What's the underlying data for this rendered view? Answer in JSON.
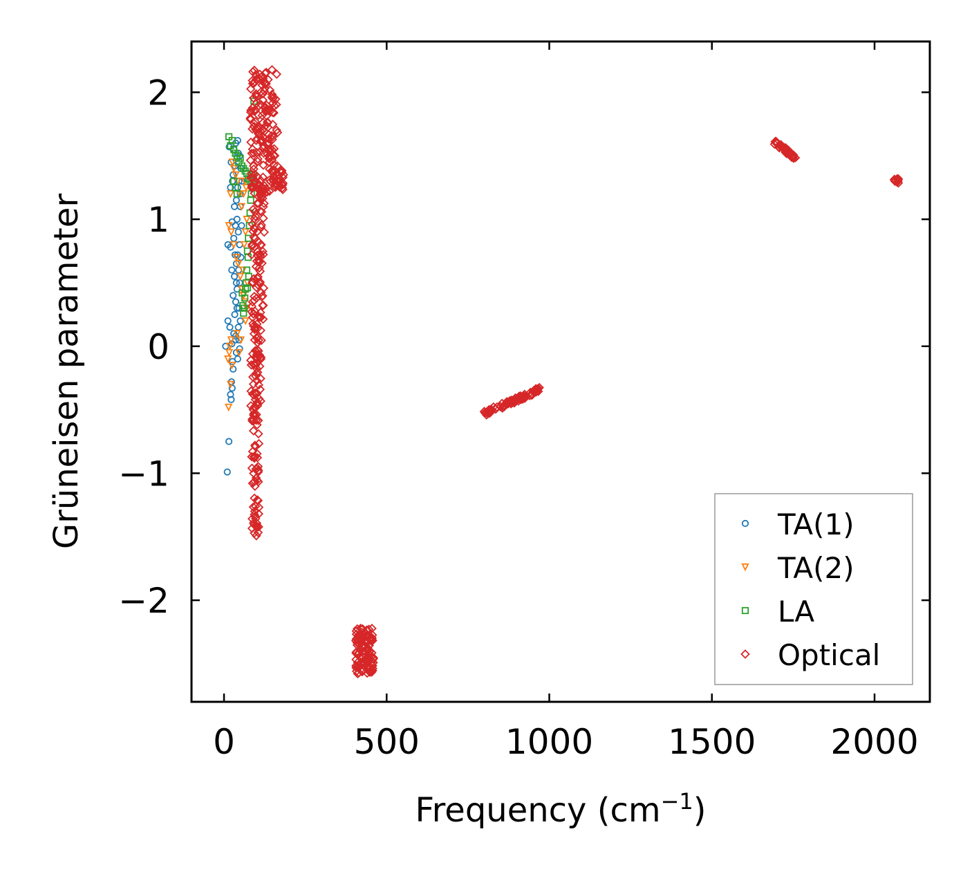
{
  "chart_data": {
    "type": "scatter",
    "title": "",
    "xlabel": "Frequency (cm",
    "xlabel_sup": "−1",
    "xlabel_close": ")",
    "ylabel": "Grüneisen parameter",
    "xlim": [
      -100,
      2170
    ],
    "ylim": [
      -2.8,
      2.4
    ],
    "xticks": [
      0,
      500,
      1000,
      1500,
      2000
    ],
    "xtick_labels": [
      "0",
      "500",
      "1000",
      "1500",
      "2000"
    ],
    "yticks": [
      -2,
      -1,
      0,
      1,
      2
    ],
    "ytick_labels": [
      "−2",
      "−1",
      "0",
      "1",
      "2"
    ],
    "legend_position": "lower-right",
    "series": [
      {
        "name": "TA(1)",
        "marker": "circle",
        "color": "#1f77b4",
        "points": [
          [
            10,
            -0.99
          ],
          [
            15,
            -0.75
          ],
          [
            22,
            -0.42
          ],
          [
            20,
            -0.38
          ],
          [
            25,
            -0.33
          ],
          [
            23,
            -0.28
          ],
          [
            28,
            -0.18
          ],
          [
            26,
            -0.12
          ],
          [
            5,
            0.0
          ],
          [
            12,
            0.2
          ],
          [
            18,
            0.15
          ],
          [
            24,
            0.02
          ],
          [
            30,
            0.1
          ],
          [
            35,
            0.05
          ],
          [
            38,
            -0.05
          ],
          [
            42,
            -0.1
          ],
          [
            33,
            0.25
          ],
          [
            36,
            0.35
          ],
          [
            40,
            0.45
          ],
          [
            28,
            0.4
          ],
          [
            32,
            0.55
          ],
          [
            38,
            0.65
          ],
          [
            42,
            0.72
          ],
          [
            45,
            0.6
          ],
          [
            12,
            0.8
          ],
          [
            20,
            0.78
          ],
          [
            30,
            0.85
          ],
          [
            35,
            0.95
          ],
          [
            40,
            1.0
          ],
          [
            44,
            0.9
          ],
          [
            48,
            0.8
          ],
          [
            25,
            0.98
          ],
          [
            32,
            1.1
          ],
          [
            38,
            1.15
          ],
          [
            42,
            1.25
          ],
          [
            46,
            1.3
          ],
          [
            50,
            1.2
          ],
          [
            28,
            1.35
          ],
          [
            34,
            1.42
          ],
          [
            40,
            1.48
          ],
          [
            44,
            1.52
          ],
          [
            22,
            1.45
          ],
          [
            16,
            1.57
          ],
          [
            30,
            1.55
          ],
          [
            36,
            1.6
          ],
          [
            42,
            1.62
          ],
          [
            48,
            1.5
          ],
          [
            52,
            1.4
          ],
          [
            55,
            1.3
          ],
          [
            50,
            1.1
          ],
          [
            54,
            0.95
          ],
          [
            48,
            0.5
          ],
          [
            52,
            0.7
          ],
          [
            46,
            0.3
          ],
          [
            50,
            0.2
          ],
          [
            44,
            0.15
          ],
          [
            40,
            0.3
          ],
          [
            36,
            0.08
          ],
          [
            46,
            0.05
          ],
          [
            48,
            -0.02
          ],
          [
            38,
            0.5
          ],
          [
            34,
            0.72
          ],
          [
            20,
            1.25
          ],
          [
            26,
            1.3
          ],
          [
            24,
            0.6
          ]
        ]
      },
      {
        "name": "TA(2)",
        "marker": "triangle-down",
        "color": "#ff7f0e",
        "points": [
          [
            14,
            -0.48
          ],
          [
            12,
            -0.1
          ],
          [
            16,
            -0.05
          ],
          [
            18,
            0.0
          ],
          [
            20,
            -0.3
          ],
          [
            22,
            0.05
          ],
          [
            24,
            -0.15
          ],
          [
            15,
            0.95
          ],
          [
            22,
            0.9
          ],
          [
            30,
            0.8
          ],
          [
            38,
            0.7
          ],
          [
            44,
            0.65
          ],
          [
            50,
            0.55
          ],
          [
            55,
            0.45
          ],
          [
            60,
            0.4
          ],
          [
            64,
            0.35
          ],
          [
            58,
            0.6
          ],
          [
            62,
            0.8
          ],
          [
            66,
            0.9
          ],
          [
            70,
            1.0
          ],
          [
            54,
            1.1
          ],
          [
            48,
            1.2
          ],
          [
            42,
            1.3
          ],
          [
            36,
            1.35
          ],
          [
            30,
            1.4
          ],
          [
            26,
            1.45
          ],
          [
            20,
            1.2
          ],
          [
            60,
            1.2
          ],
          [
            64,
            1.3
          ],
          [
            68,
            1.25
          ],
          [
            72,
            0.5
          ],
          [
            70,
            0.3
          ],
          [
            66,
            0.2
          ],
          [
            52,
            0.05
          ],
          [
            46,
            -0.05
          ],
          [
            40,
            0.1
          ]
        ]
      },
      {
        "name": "LA",
        "marker": "square",
        "color": "#2ca02c",
        "points": [
          [
            15,
            1.65
          ],
          [
            20,
            1.58
          ],
          [
            25,
            1.62
          ],
          [
            30,
            1.55
          ],
          [
            35,
            1.52
          ],
          [
            40,
            1.5
          ],
          [
            45,
            1.45
          ],
          [
            50,
            1.48
          ],
          [
            55,
            1.42
          ],
          [
            60,
            1.4
          ],
          [
            65,
            1.38
          ],
          [
            70,
            1.36
          ],
          [
            75,
            1.32
          ],
          [
            80,
            1.3
          ],
          [
            85,
            1.28
          ],
          [
            90,
            1.35
          ],
          [
            88,
            1.25
          ],
          [
            92,
            1.93
          ],
          [
            80,
            1.05
          ],
          [
            78,
            0.95
          ],
          [
            75,
            0.85
          ],
          [
            72,
            0.75
          ],
          [
            70,
            0.6
          ],
          [
            68,
            0.5
          ],
          [
            66,
            0.45
          ],
          [
            64,
            0.38
          ],
          [
            62,
            0.3
          ],
          [
            60,
            0.26
          ],
          [
            58,
            0.32
          ],
          [
            56,
            0.42
          ],
          [
            74,
            0.7
          ],
          [
            76,
            0.55
          ],
          [
            72,
            0.46
          ],
          [
            82,
            1.15
          ],
          [
            84,
            1.2
          ],
          [
            30,
            1.3
          ],
          [
            35,
            1.25
          ],
          [
            40,
            1.2
          ]
        ]
      },
      {
        "name": "Optical",
        "marker": "diamond",
        "color": "#d62728",
        "clusters": [
          {
            "x": [
              80,
              165
            ],
            "y": [
              1.2,
              2.18
            ],
            "n": 170
          },
          {
            "x": [
              150,
              185
            ],
            "y": [
              1.22,
              1.4
            ],
            "n": 25
          },
          {
            "x": [
              85,
              125
            ],
            "y": [
              0.2,
              1.3
            ],
            "n": 90
          },
          {
            "x": [
              82,
              115
            ],
            "y": [
              -0.5,
              0.2
            ],
            "n": 60
          },
          {
            "x": [
              85,
              108
            ],
            "y": [
              -1.5,
              -0.5
            ],
            "n": 60
          },
          {
            "x": [
              405,
              460
            ],
            "y": [
              -2.58,
              -2.22
            ],
            "n": 120
          },
          {
            "x": [
              800,
              970
            ],
            "y": [
              -0.53,
              -0.34
            ],
            "n": 80
          },
          {
            "x": [
              1690,
              1760
            ],
            "y": [
              1.48,
              1.61
            ],
            "n": 40
          },
          {
            "x": [
              2060,
              2075
            ],
            "y": [
              1.28,
              1.32
            ],
            "n": 10
          }
        ]
      }
    ]
  }
}
